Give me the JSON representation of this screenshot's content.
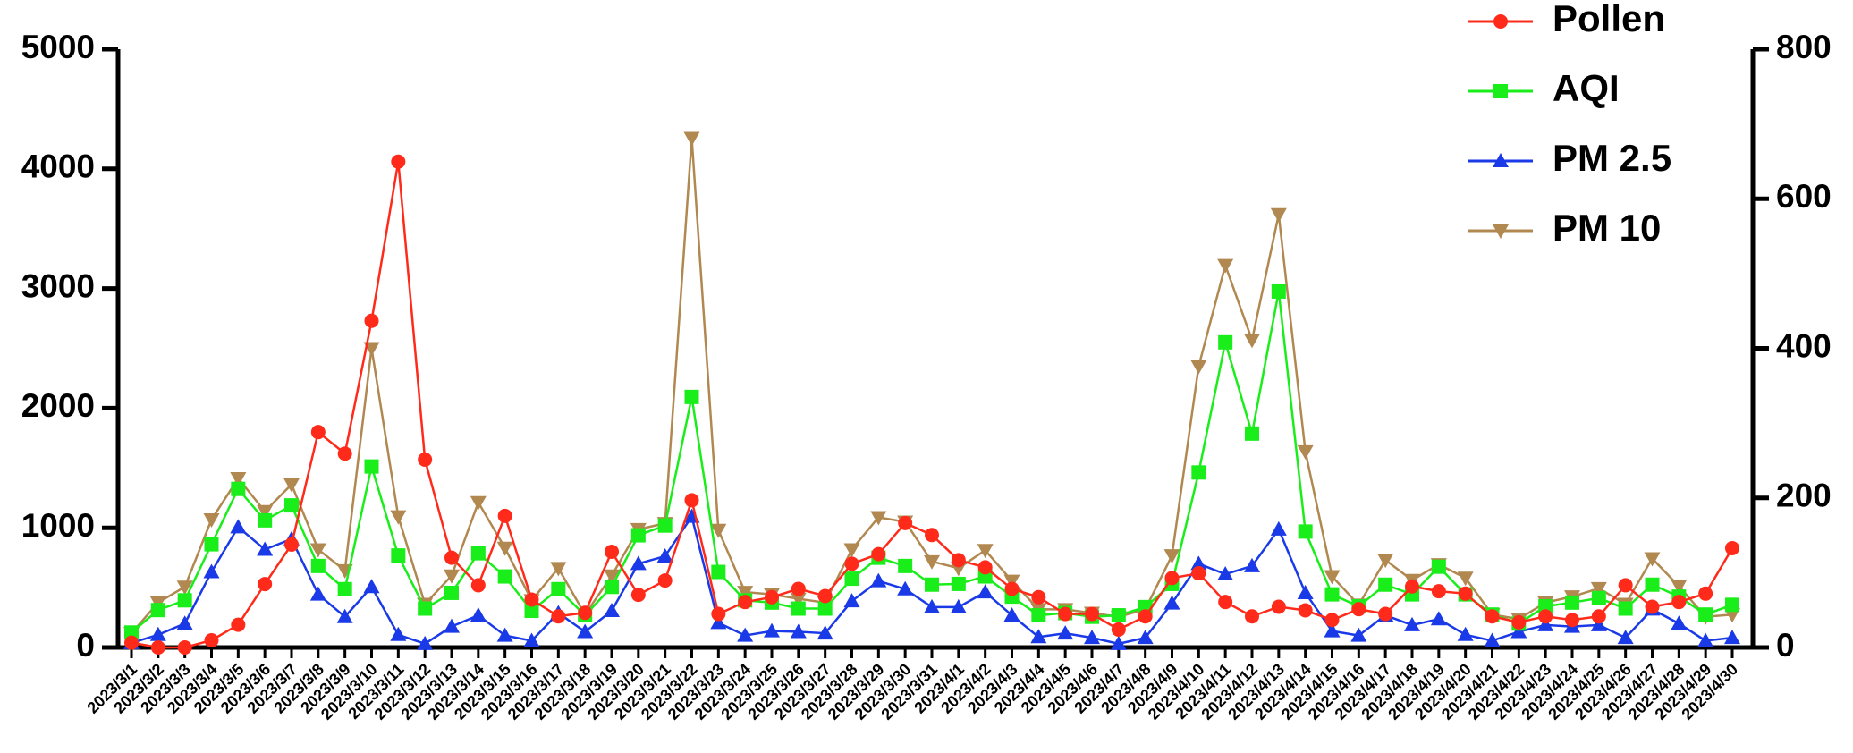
{
  "chart_data": {
    "type": "line",
    "categories": [
      "2023/3/1",
      "2023/3/2",
      "2023/3/3",
      "2023/3/4",
      "2023/3/5",
      "2023/3/6",
      "2023/3/7",
      "2023/3/8",
      "2023/3/9",
      "2023/3/10",
      "2023/3/11",
      "2023/3/12",
      "2023/3/13",
      "2023/3/14",
      "2023/3/15",
      "2023/3/16",
      "2023/3/17",
      "2023/3/18",
      "2023/3/19",
      "2023/3/20",
      "2023/3/21",
      "2023/3/22",
      "2023/3/23",
      "2023/3/24",
      "2023/3/25",
      "2023/3/26",
      "2023/3/27",
      "2023/3/28",
      "2023/3/29",
      "2023/3/30",
      "2023/3/31",
      "2023/4/1",
      "2023/4/2",
      "2023/4/3",
      "2023/4/4",
      "2023/4/5",
      "2023/4/6",
      "2023/4/7",
      "2023/4/8",
      "2023/4/9",
      "2023/4/10",
      "2023/4/11",
      "2023/4/12",
      "2023/4/13",
      "2023/4/14",
      "2023/4/15",
      "2023/4/16",
      "2023/4/17",
      "2023/4/18",
      "2023/4/19",
      "2023/4/20",
      "2023/4/21",
      "2023/4/22",
      "2023/4/23",
      "2023/4/24",
      "2023/4/25",
      "2023/4/26",
      "2023/4/27",
      "2023/4/28",
      "2023/4/29",
      "2023/4/30"
    ],
    "series": [
      {
        "name": "Pollen",
        "color": "#ff2a1a",
        "marker": "circle",
        "axis": "y",
        "values": [
          40,
          0,
          0,
          60,
          190,
          530,
          860,
          1800,
          1620,
          2730,
          4060,
          1570,
          750,
          520,
          1100,
          400,
          260,
          290,
          800,
          440,
          560,
          1230,
          280,
          380,
          420,
          490,
          430,
          700,
          780,
          1040,
          940,
          730,
          670,
          490,
          420,
          280,
          280,
          150,
          260,
          580,
          620,
          380,
          260,
          340,
          310,
          230,
          320,
          280,
          510,
          470,
          450,
          260,
          210,
          260,
          230,
          260,
          520,
          340,
          380,
          450,
          830
        ]
      },
      {
        "name": "AQI",
        "color": "#1aee1a",
        "marker": "square",
        "axis": "y2",
        "values": [
          20,
          50,
          63,
          138,
          212,
          170,
          190,
          109,
          78,
          242,
          123,
          52,
          73,
          126,
          95,
          49,
          78,
          43,
          81,
          150,
          163,
          335,
          101,
          63,
          60,
          52,
          52,
          92,
          120,
          109,
          84,
          85,
          95,
          68,
          43,
          46,
          41,
          43,
          54,
          85,
          234,
          408,
          286,
          476,
          155,
          71,
          55,
          84,
          71,
          108,
          71,
          44,
          32,
          55,
          60,
          66,
          52,
          84,
          68,
          44,
          57
        ]
      },
      {
        "name": "PM 2.5",
        "color": "#1a3ae8",
        "marker": "triangle-up",
        "axis": "y2",
        "values": [
          6,
          17,
          32,
          101,
          161,
          131,
          145,
          71,
          41,
          81,
          17,
          5,
          28,
          43,
          16,
          9,
          46,
          21,
          49,
          112,
          122,
          175,
          33,
          16,
          22,
          21,
          19,
          62,
          89,
          78,
          54,
          54,
          74,
          43,
          14,
          19,
          13,
          5,
          13,
          59,
          112,
          98,
          109,
          158,
          73,
          22,
          16,
          43,
          30,
          38,
          17,
          9,
          21,
          30,
          28,
          30,
          13,
          51,
          32,
          9,
          13
        ]
      },
      {
        "name": "PM 10",
        "color": "#b08850",
        "marker": "triangle-down",
        "axis": "y2",
        "values": [
          19,
          60,
          81,
          171,
          226,
          182,
          218,
          131,
          103,
          400,
          175,
          58,
          96,
          194,
          133,
          63,
          106,
          44,
          96,
          158,
          166,
          681,
          157,
          74,
          71,
          65,
          60,
          131,
          174,
          168,
          115,
          106,
          130,
          89,
          51,
          51,
          46,
          41,
          51,
          123,
          376,
          511,
          411,
          579,
          262,
          95,
          57,
          117,
          90,
          111,
          93,
          44,
          38,
          60,
          68,
          79,
          58,
          119,
          82,
          41,
          44
        ]
      }
    ],
    "ylim": [
      0,
      5000
    ],
    "yticks": [
      0,
      1000,
      2000,
      3000,
      4000,
      5000
    ],
    "y2lim": [
      0,
      800
    ],
    "y2ticks": [
      0,
      200,
      400,
      600,
      800
    ],
    "legend": "top-right"
  }
}
